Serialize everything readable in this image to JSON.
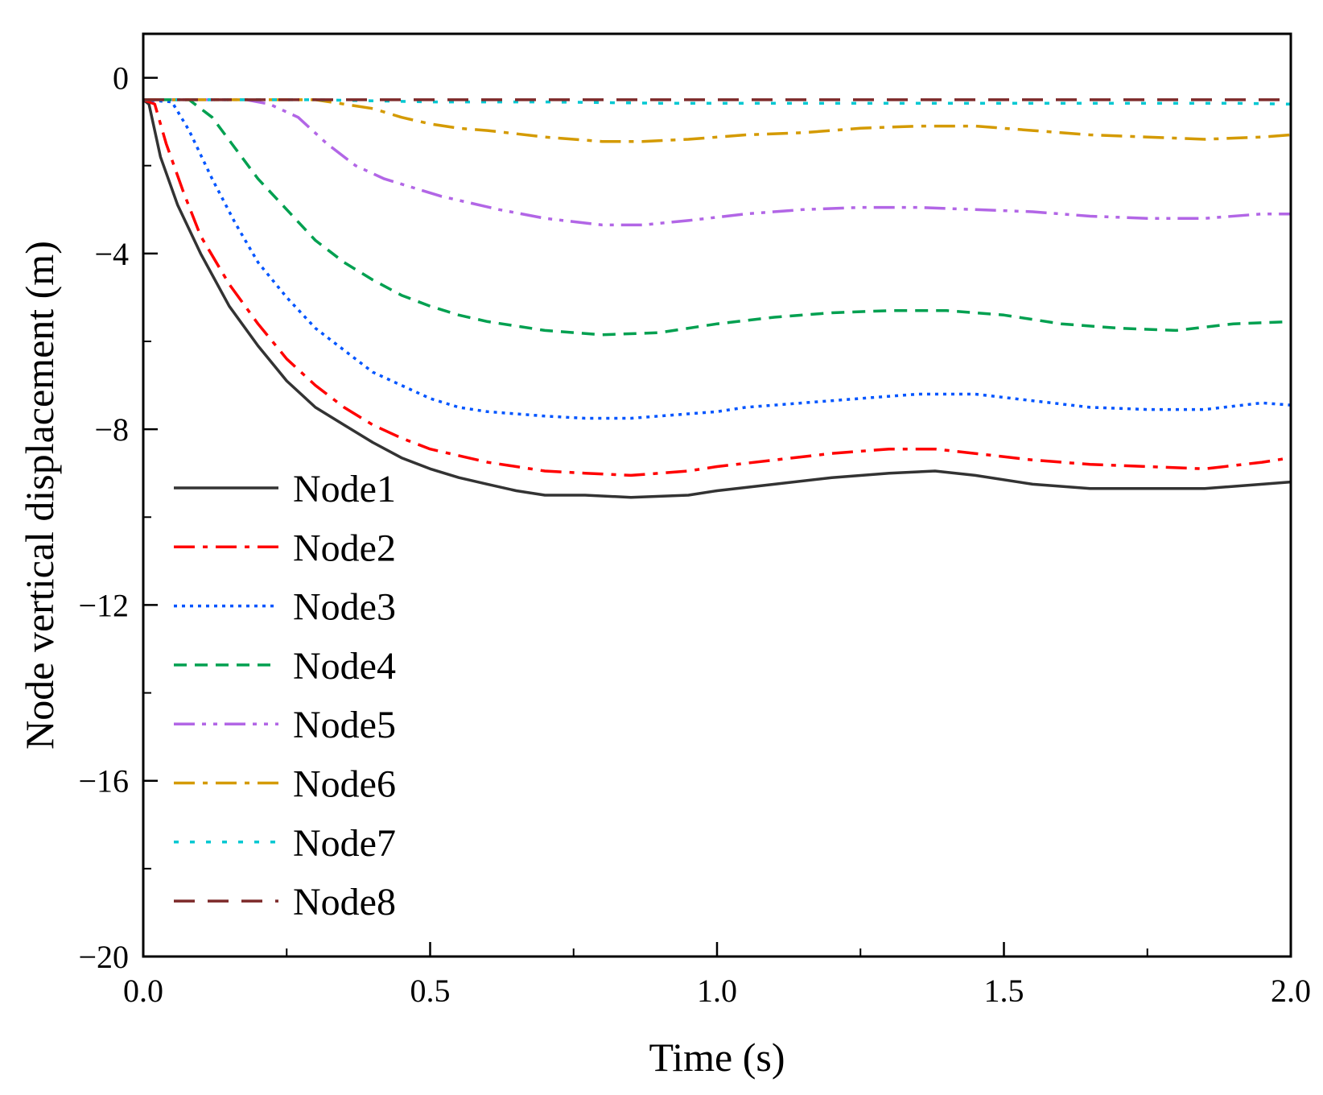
{
  "chart_data": {
    "type": "line",
    "title": "",
    "xlabel": "Time (s)",
    "ylabel": "Node vertical displacement (m)",
    "xlim": [
      0,
      2.0
    ],
    "ylim": [
      -20,
      1
    ],
    "grid": false,
    "legend_position": "left",
    "x_ticks": [
      0.0,
      0.5,
      1.0,
      1.5,
      2.0
    ],
    "x_tick_labels": [
      "0.0",
      "0.5",
      "1.0",
      "1.5",
      "2.0"
    ],
    "y_ticks": [
      0,
      -4,
      -8,
      -12,
      -16,
      -20
    ],
    "y_tick_labels": [
      "0",
      "−4",
      "−8",
      "−12",
      "−16",
      "−20"
    ],
    "series": [
      {
        "name": "Node1",
        "color": "#333333",
        "dash": "solid",
        "x": [
          0,
          0.01,
          0.03,
          0.06,
          0.1,
          0.15,
          0.2,
          0.25,
          0.3,
          0.35,
          0.4,
          0.45,
          0.5,
          0.55,
          0.6,
          0.65,
          0.7,
          0.77,
          0.85,
          0.95,
          1.0,
          1.1,
          1.2,
          1.3,
          1.38,
          1.45,
          1.55,
          1.65,
          1.75,
          1.85,
          1.95,
          2.0
        ],
        "y": [
          -0.5,
          -0.6,
          -1.8,
          -2.9,
          -4.0,
          -5.2,
          -6.1,
          -6.9,
          -7.5,
          -7.9,
          -8.3,
          -8.65,
          -8.9,
          -9.1,
          -9.25,
          -9.4,
          -9.5,
          -9.5,
          -9.55,
          -9.5,
          -9.4,
          -9.25,
          -9.1,
          -9.0,
          -8.95,
          -9.05,
          -9.25,
          -9.35,
          -9.35,
          -9.35,
          -9.25,
          -9.2
        ]
      },
      {
        "name": "Node2",
        "color": "#ff0000",
        "dash": "dashdot",
        "x": [
          0,
          0.02,
          0.04,
          0.07,
          0.1,
          0.15,
          0.2,
          0.25,
          0.3,
          0.35,
          0.4,
          0.45,
          0.5,
          0.55,
          0.6,
          0.65,
          0.7,
          0.77,
          0.85,
          0.95,
          1.0,
          1.1,
          1.2,
          1.3,
          1.38,
          1.45,
          1.55,
          1.65,
          1.75,
          1.85,
          1.95,
          2.0
        ],
        "y": [
          -0.5,
          -0.6,
          -1.5,
          -2.6,
          -3.6,
          -4.7,
          -5.6,
          -6.4,
          -7.0,
          -7.5,
          -7.9,
          -8.2,
          -8.45,
          -8.6,
          -8.75,
          -8.85,
          -8.95,
          -9.0,
          -9.05,
          -8.95,
          -8.85,
          -8.7,
          -8.55,
          -8.45,
          -8.45,
          -8.55,
          -8.7,
          -8.8,
          -8.85,
          -8.9,
          -8.75,
          -8.65
        ]
      },
      {
        "name": "Node3",
        "color": "#0055ff",
        "dash": "dotted",
        "x": [
          0,
          0.05,
          0.08,
          0.12,
          0.16,
          0.2,
          0.25,
          0.3,
          0.35,
          0.4,
          0.45,
          0.5,
          0.55,
          0.6,
          0.65,
          0.7,
          0.77,
          0.85,
          0.95,
          1.0,
          1.05,
          1.15,
          1.25,
          1.35,
          1.45,
          1.55,
          1.65,
          1.75,
          1.85,
          1.95,
          2.0
        ],
        "y": [
          -0.5,
          -0.55,
          -1.2,
          -2.3,
          -3.3,
          -4.2,
          -5.0,
          -5.7,
          -6.2,
          -6.7,
          -7.0,
          -7.3,
          -7.5,
          -7.6,
          -7.65,
          -7.7,
          -7.75,
          -7.75,
          -7.65,
          -7.6,
          -7.5,
          -7.4,
          -7.3,
          -7.2,
          -7.2,
          -7.35,
          -7.5,
          -7.55,
          -7.55,
          -7.4,
          -7.45
        ]
      },
      {
        "name": "Node4",
        "color": "#00a050",
        "dash": "dashed",
        "x": [
          0,
          0.08,
          0.12,
          0.16,
          0.2,
          0.25,
          0.3,
          0.35,
          0.4,
          0.45,
          0.5,
          0.55,
          0.6,
          0.7,
          0.8,
          0.9,
          1.0,
          1.1,
          1.2,
          1.3,
          1.4,
          1.5,
          1.6,
          1.7,
          1.8,
          1.9,
          2.0
        ],
        "y": [
          -0.5,
          -0.5,
          -0.9,
          -1.6,
          -2.3,
          -3.0,
          -3.7,
          -4.2,
          -4.6,
          -4.95,
          -5.2,
          -5.4,
          -5.55,
          -5.75,
          -5.85,
          -5.8,
          -5.6,
          -5.45,
          -5.35,
          -5.3,
          -5.3,
          -5.4,
          -5.6,
          -5.7,
          -5.75,
          -5.6,
          -5.55
        ]
      },
      {
        "name": "Node5",
        "color": "#b266e6",
        "dash": "dashdotdot",
        "x": [
          0,
          0.18,
          0.22,
          0.27,
          0.32,
          0.37,
          0.42,
          0.47,
          0.52,
          0.57,
          0.62,
          0.7,
          0.8,
          0.87,
          0.95,
          1.05,
          1.15,
          1.25,
          1.35,
          1.45,
          1.55,
          1.65,
          1.75,
          1.85,
          1.95,
          2.0
        ],
        "y": [
          -0.5,
          -0.5,
          -0.6,
          -0.9,
          -1.5,
          -2.0,
          -2.3,
          -2.5,
          -2.7,
          -2.85,
          -3.0,
          -3.2,
          -3.35,
          -3.35,
          -3.25,
          -3.1,
          -3.0,
          -2.95,
          -2.95,
          -3.0,
          -3.05,
          -3.15,
          -3.2,
          -3.2,
          -3.1,
          -3.1
        ]
      },
      {
        "name": "Node6",
        "color": "#d49a00",
        "dash": "dashdot",
        "x": [
          0,
          0.3,
          0.35,
          0.4,
          0.45,
          0.5,
          0.55,
          0.6,
          0.7,
          0.8,
          0.87,
          0.95,
          1.05,
          1.15,
          1.25,
          1.35,
          1.45,
          1.55,
          1.65,
          1.75,
          1.85,
          1.95,
          2.0
        ],
        "y": [
          -0.5,
          -0.5,
          -0.6,
          -0.7,
          -0.9,
          -1.05,
          -1.15,
          -1.2,
          -1.35,
          -1.45,
          -1.45,
          -1.4,
          -1.3,
          -1.25,
          -1.15,
          -1.1,
          -1.1,
          -1.2,
          -1.3,
          -1.35,
          -1.4,
          -1.35,
          -1.3
        ]
      },
      {
        "name": "Node7",
        "color": "#00c8d2",
        "dash": "dotted-wide",
        "x": [
          0,
          0.3,
          0.5,
          0.7,
          0.9,
          1.1,
          1.3,
          1.5,
          1.7,
          1.9,
          2.0
        ],
        "y": [
          -0.5,
          -0.5,
          -0.55,
          -0.55,
          -0.58,
          -0.58,
          -0.58,
          -0.58,
          -0.58,
          -0.58,
          -0.6
        ]
      },
      {
        "name": "Node8",
        "color": "#7d2a2a",
        "dash": "longdash",
        "x": [
          0,
          0.5,
          1.0,
          1.5,
          2.0
        ],
        "y": [
          -0.5,
          -0.5,
          -0.5,
          -0.5,
          -0.5
        ]
      }
    ]
  }
}
